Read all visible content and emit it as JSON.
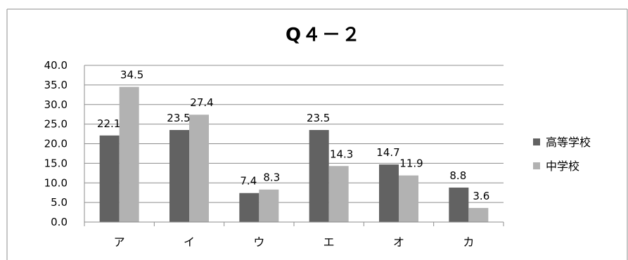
{
  "chart_data": {
    "type": "bar",
    "title": "Q４－２",
    "categories": [
      "ア",
      "イ",
      "ウ",
      "エ",
      "オ",
      "カ"
    ],
    "series": [
      {
        "name": "高等学校",
        "values": [
          22.1,
          23.5,
          7.4,
          23.5,
          14.7,
          8.8
        ],
        "color": "#626262"
      },
      {
        "name": "中学校",
        "values": [
          34.5,
          27.4,
          8.3,
          14.3,
          11.9,
          3.6
        ],
        "color": "#b2b2b2"
      }
    ],
    "data_labels": [
      [
        "22.1",
        "23.5",
        "7.4",
        "23.5",
        "14.7",
        "8.8"
      ],
      [
        "34.5",
        "27.4",
        "8.3",
        "14.3",
        "11.9",
        "3.6"
      ]
    ],
    "yticks": [
      "0.0",
      "5.0",
      "10.0",
      "15.0",
      "20.0",
      "25.0",
      "30.0",
      "35.0",
      "40.0"
    ],
    "ylim": [
      0,
      40
    ],
    "grid": true,
    "legend_position": "right"
  }
}
